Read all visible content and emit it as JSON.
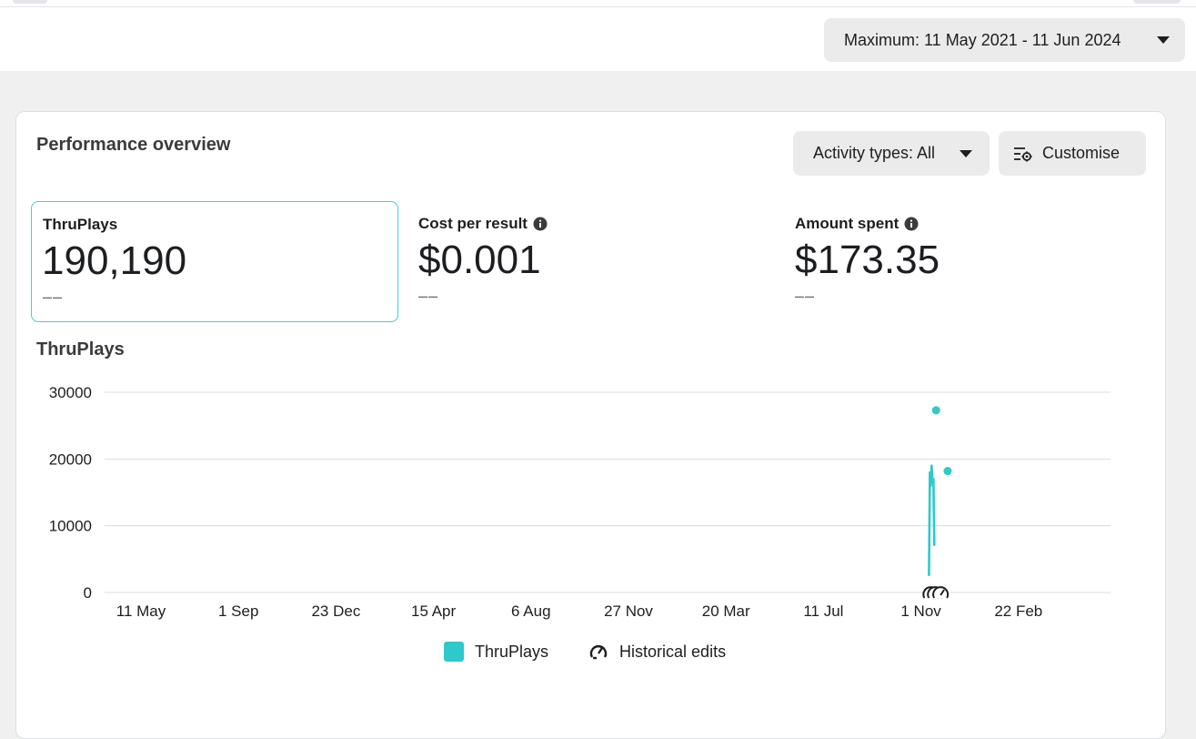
{
  "date_range": {
    "label": "Maximum: 11 May 2021 - 11 Jun 2024"
  },
  "card": {
    "title": "Performance overview",
    "activity_label": "Activity types: All",
    "customise_label": "Customise"
  },
  "metrics": [
    {
      "label": "ThruPlays",
      "value": "190,190",
      "delta": "––",
      "info": false,
      "selected": true
    },
    {
      "label": "Cost per result",
      "value": "$0.001",
      "delta": "––",
      "info": true,
      "selected": false
    },
    {
      "label": "Amount spent",
      "value": "$173.35",
      "delta": "––",
      "info": true,
      "selected": false
    }
  ],
  "colors": {
    "series": "#2ec9cb",
    "selected_border": "#3ed0d6"
  },
  "chart_data": {
    "type": "line",
    "title": "ThruPlays",
    "ylim": [
      0,
      30000
    ],
    "y_ticks": [
      0,
      10000,
      20000,
      30000
    ],
    "x_ticks": [
      "11 May",
      "1 Sep",
      "23 Dec",
      "15 Apr",
      "6 Aug",
      "27 Nov",
      "20 Mar",
      "11 Jul",
      "1 Nov",
      "22 Feb"
    ],
    "series": [
      {
        "name": "ThruPlays",
        "line": [
          [
            "2023-10-14",
            2500
          ],
          [
            "2023-10-15",
            18000
          ],
          [
            "2023-10-16",
            16000
          ],
          [
            "2023-10-17",
            19000
          ],
          [
            "2023-10-18",
            16500
          ],
          [
            "2023-10-19",
            17000
          ],
          [
            "2023-10-20",
            7000
          ]
        ],
        "points": [
          [
            "2023-10-22",
            27300
          ],
          [
            "2023-11-04",
            18200
          ]
        ]
      }
    ],
    "legend": {
      "entries": [
        "ThruPlays",
        "Historical edits"
      ],
      "placement": "bottom"
    },
    "historical_edits": [
      "2023-10-16",
      "2023-10-21",
      "2023-10-27"
    ]
  },
  "icons": {
    "date_caret": "caret-down-icon",
    "customise": "settings-sliders-icon",
    "info": "info-icon",
    "historical_edit": "gauge-edit-icon"
  }
}
